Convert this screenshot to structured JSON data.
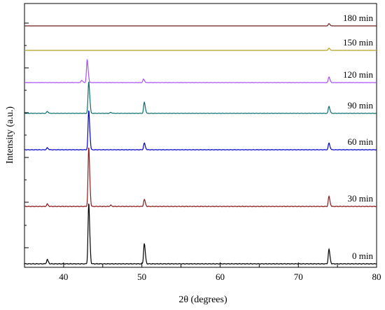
{
  "chart_data": {
    "type": "line",
    "xlabel": "2θ (degrees)",
    "ylabel": "Intensity (a.u.)",
    "xlim": [
      35,
      80
    ],
    "xticks": [
      40,
      50,
      60,
      70,
      80
    ],
    "xtick_labels": [
      "40",
      "50",
      "60",
      "70",
      "80"
    ],
    "y_ticks_labeled": false,
    "grid": false,
    "legend": "none",
    "series": [
      {
        "name": "0 min",
        "color": "#000000",
        "peaks": [
          {
            "x": 37.9,
            "h": 0.07
          },
          {
            "x": 43.2,
            "h": 1.0
          },
          {
            "x": 50.3,
            "h": 0.34
          },
          {
            "x": 73.9,
            "h": 0.24
          }
        ]
      },
      {
        "name": "30 min",
        "color": "#8b1a1a",
        "peaks": [
          {
            "x": 37.9,
            "h": 0.04
          },
          {
            "x": 43.2,
            "h": 1.0
          },
          {
            "x": 46.0,
            "h": 0.02
          },
          {
            "x": 50.3,
            "h": 0.12
          },
          {
            "x": 73.9,
            "h": 0.17
          }
        ]
      },
      {
        "name": "60 min",
        "color": "#0000cc",
        "peaks": [
          {
            "x": 37.9,
            "h": 0.05
          },
          {
            "x": 43.2,
            "h": 1.0
          },
          {
            "x": 50.3,
            "h": 0.17
          },
          {
            "x": 73.9,
            "h": 0.17
          }
        ]
      },
      {
        "name": "90 min",
        "color": "#0b6e6e",
        "peaks": [
          {
            "x": 37.9,
            "h": 0.06
          },
          {
            "x": 43.2,
            "h": 1.0
          },
          {
            "x": 46.0,
            "h": 0.03
          },
          {
            "x": 50.3,
            "h": 0.35
          },
          {
            "x": 73.9,
            "h": 0.22
          }
        ]
      },
      {
        "name": "120 min",
        "color": "#a64dff",
        "peaks": [
          {
            "x": 42.3,
            "h": 0.1
          },
          {
            "x": 43.0,
            "h": 1.0
          },
          {
            "x": 50.2,
            "h": 0.15
          },
          {
            "x": 73.9,
            "h": 0.25
          }
        ]
      },
      {
        "name": "150 min",
        "color": "#b8a020",
        "peaks": [
          {
            "x": 73.9,
            "h": 1.0
          }
        ]
      },
      {
        "name": "180 min",
        "color": "#6b1d1d",
        "peaks": [
          {
            "x": 73.9,
            "h": 1.0
          }
        ]
      }
    ]
  }
}
